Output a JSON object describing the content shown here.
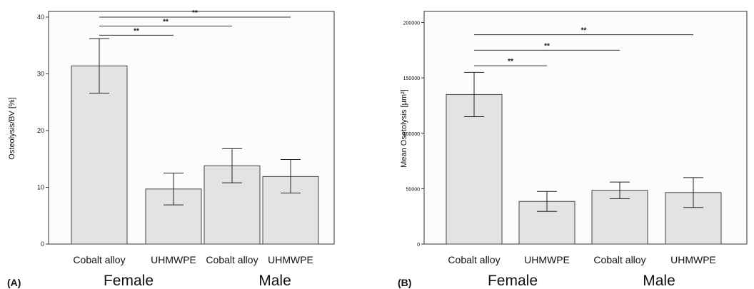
{
  "chart_data": [
    {
      "type": "bar",
      "panel_label": "(A)",
      "ylabel": "Osteolysis/BV [%]",
      "ylim": [
        0,
        41
      ],
      "yticks": [
        0,
        10,
        20,
        30,
        40
      ],
      "yticks_text": [
        "0",
        "10",
        "20",
        "30",
        "40"
      ],
      "categories": [
        "Cobalt alloy",
        "UHMWPE",
        "Cobalt alloy",
        "UHMWPE"
      ],
      "groups": [
        {
          "label": "Female",
          "indices": [
            0,
            1
          ]
        },
        {
          "label": "Male",
          "indices": [
            2,
            3
          ]
        }
      ],
      "values": [
        31.4,
        9.7,
        13.8,
        11.9
      ],
      "error_low": [
        26.6,
        6.9,
        10.8,
        9.0
      ],
      "error_high": [
        36.2,
        12.5,
        16.8,
        14.9
      ],
      "bar_color": "#e3e3e3",
      "grid": false,
      "significance": [
        {
          "from": 0,
          "to": 1,
          "text": "**",
          "y": 36.8
        },
        {
          "from": 0,
          "to": 2,
          "text": "**",
          "y": 38.4
        },
        {
          "from": 0,
          "to": 3,
          "text": "**",
          "y": 40.0
        }
      ]
    },
    {
      "type": "bar",
      "panel_label": "(B)",
      "ylabel": "Mean Osetolysis [µm²]",
      "ylim": [
        0,
        210000
      ],
      "yticks": [
        0,
        50000,
        100000,
        150000,
        200000
      ],
      "yticks_text": [
        "0",
        "50000",
        "100000",
        "150000",
        "200000"
      ],
      "categories": [
        "Cobalt alloy",
        "UHMWPE",
        "Cobalt alloy",
        "UHMWPE"
      ],
      "groups": [
        {
          "label": "Female",
          "indices": [
            0,
            1
          ]
        },
        {
          "label": "Male",
          "indices": [
            2,
            3
          ]
        }
      ],
      "values": [
        135000,
        38500,
        48500,
        46500
      ],
      "error_low": [
        115000,
        29500,
        41000,
        33000
      ],
      "error_high": [
        155000,
        47500,
        56000,
        60000
      ],
      "bar_color": "#e3e3e3",
      "grid": false,
      "significance": [
        {
          "from": 0,
          "to": 1,
          "text": "**",
          "y": 161000
        },
        {
          "from": 0,
          "to": 2,
          "text": "**",
          "y": 175000
        },
        {
          "from": 0,
          "to": 3,
          "text": "**",
          "y": 189000
        }
      ]
    }
  ]
}
